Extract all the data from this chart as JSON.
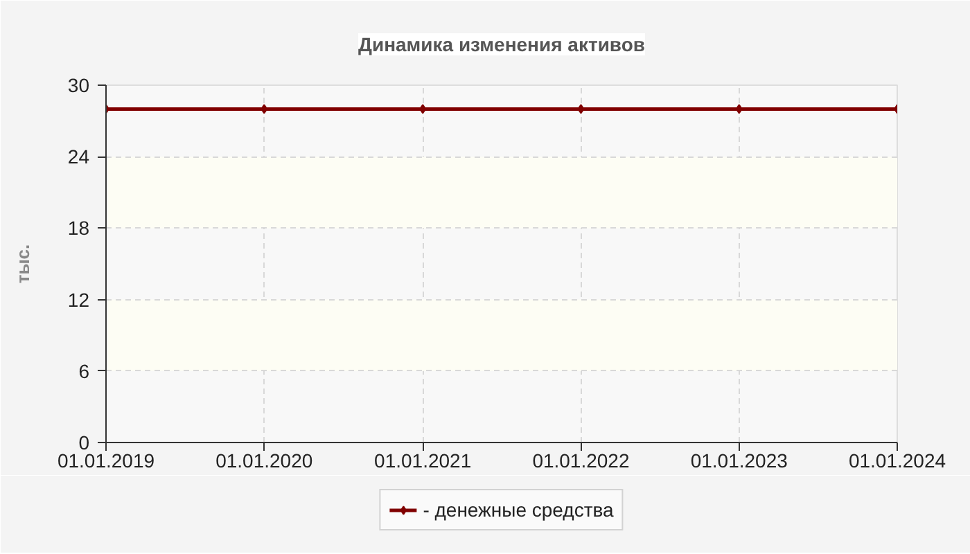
{
  "chart_data": {
    "type": "line",
    "title": "Динамика изменения активов",
    "ylabel": "тыс.",
    "x": [
      "2019-01-01",
      "2020-01-01",
      "2021-01-01",
      "2022-01-01",
      "2023-01-01",
      "2024-01-01"
    ],
    "series": [
      {
        "name": "- денежные средства",
        "color": "#800000",
        "values": [
          28,
          28,
          28,
          28,
          28,
          28
        ]
      }
    ],
    "xlim": [
      "2019-01-01",
      "2024-01-01"
    ],
    "xticks": [
      {
        "value": "2019-01-01",
        "label": "01.01.2019"
      },
      {
        "value": "2020-01-01",
        "label": "01.01.2020"
      },
      {
        "value": "2021-01-01",
        "label": "01.01.2021"
      },
      {
        "value": "2022-01-01",
        "label": "01.01.2022"
      },
      {
        "value": "2023-01-01",
        "label": "01.01.2023"
      },
      {
        "value": "2024-01-01",
        "label": "01.01.2024"
      }
    ],
    "ylim": [
      0,
      30
    ],
    "yticks": [
      0,
      6,
      12,
      18,
      24,
      30
    ],
    "grid": true,
    "legend": "bottom",
    "marker": "diamond",
    "line_style": "solid"
  }
}
